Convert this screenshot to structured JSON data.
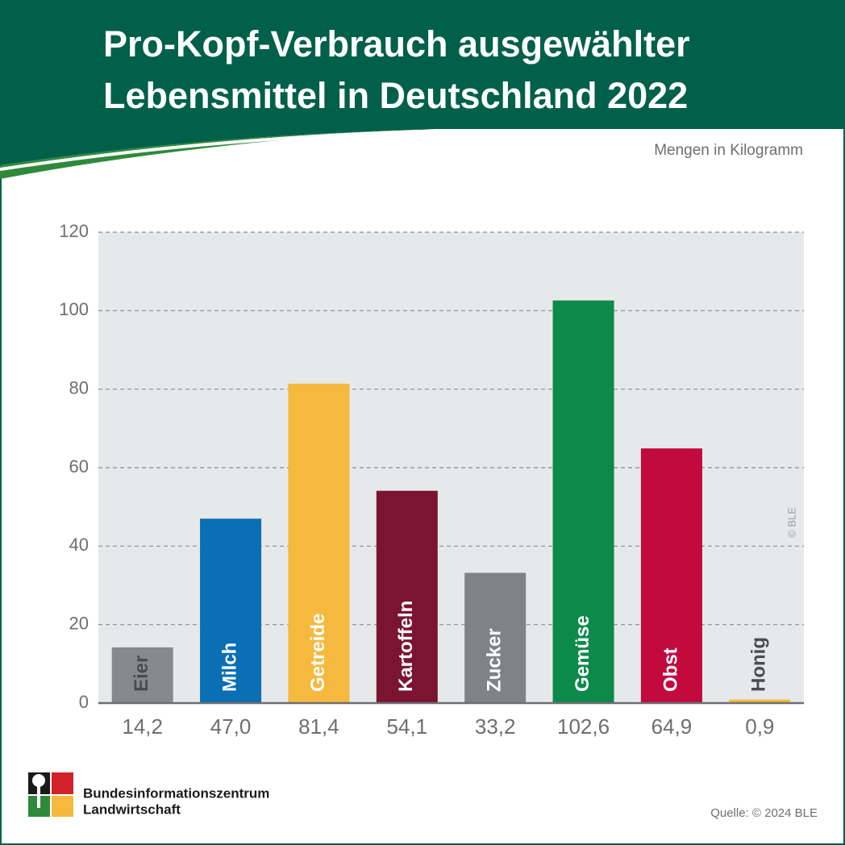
{
  "chart_data": {
    "type": "bar",
    "title": [
      "Pro-Kopf-Verbrauch ausgewählter",
      "Lebensmittel in Deutschland 2022"
    ],
    "subtitle": "Mengen in Kilogramm",
    "categories": [
      "Eier",
      "Milch",
      "Getreide",
      "Kartoffeln",
      "Zucker",
      "Gemüse",
      "Obst",
      "Honig"
    ],
    "values": [
      14.2,
      47.0,
      81.4,
      54.1,
      33.2,
      102.6,
      64.9,
      0.9
    ],
    "value_labels": [
      "14,2",
      "47,0",
      "81,4",
      "54,1",
      "33,2",
      "102,6",
      "64,9",
      "0,9"
    ],
    "colors": [
      "#87898b",
      "#0a6fb4",
      "#f5b93e",
      "#7b1430",
      "#808386",
      "#0c8a4a",
      "#c20a3f",
      "#f5b93e"
    ],
    "ylim": [
      0,
      120
    ],
    "yticks": [
      0,
      20,
      40,
      60,
      80,
      100,
      120
    ],
    "grid": true,
    "copyright": "© BLE",
    "source": "Quelle: © 2024 BLE",
    "organization": [
      "Bundesinformationszentrum",
      "Landwirtschaft"
    ]
  }
}
